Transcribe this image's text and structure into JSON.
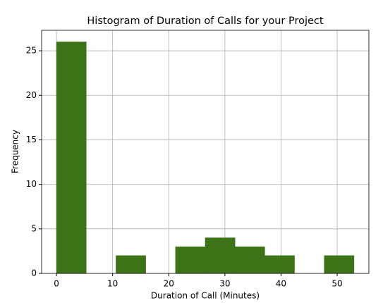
{
  "chart_data": {
    "type": "histogram",
    "title": "Histogram of Duration of Calls for your Project",
    "xlabel": "Duration of Call (Minutes)",
    "ylabel": "Frequency",
    "bins": [
      0,
      5.3,
      10.6,
      15.9,
      21.2,
      26.5,
      31.8,
      37.1,
      42.4,
      47.7,
      53
    ],
    "counts": [
      26,
      0,
      2,
      0,
      3,
      4,
      3,
      2,
      0,
      2
    ],
    "color": "#3c7317",
    "xlim": [
      -2.65,
      55.65
    ],
    "xticks": [
      0,
      10,
      20,
      30,
      40,
      50
    ],
    "ylim": [
      0,
      27.3
    ],
    "yticks": [
      0,
      5,
      10,
      15,
      20,
      25
    ],
    "grid": true
  }
}
